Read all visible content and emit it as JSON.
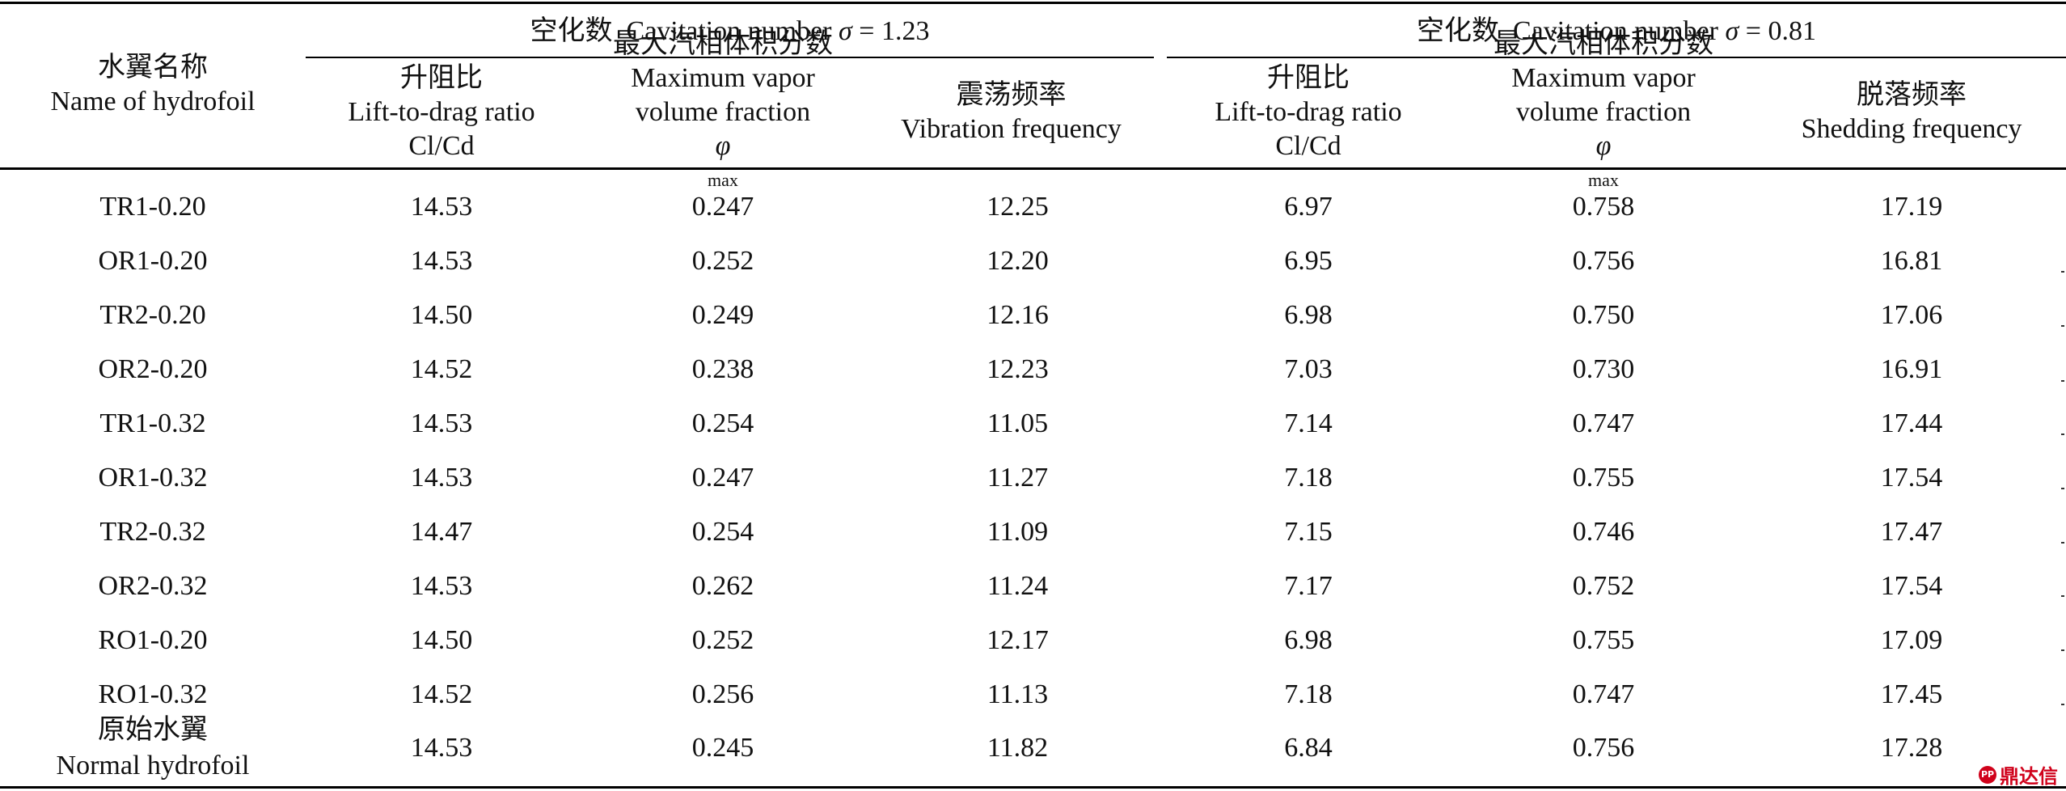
{
  "table": {
    "header": {
      "name_zh": "水翼名称",
      "name_en": "Name of hydrofoil",
      "groups": [
        {
          "title_zh": "空化数",
          "title_en": "Cavitation number",
          "sigma_symbol": "σ",
          "sigma_value": "= 1.23",
          "columns": [
            {
              "zh": "升阻比",
              "en": "Lift-to-drag ratio",
              "en2": "Cl/Cd"
            },
            {
              "zh": "最大汽相体积分数",
              "en": "Maximum vapor",
              "en2": "volume fraction",
              "symbol": "φ",
              "symbol_sub": "max"
            },
            {
              "zh": "震荡频率",
              "en": "Vibration frequency"
            }
          ]
        },
        {
          "title_zh": "空化数",
          "title_en": "Cavitation number",
          "sigma_symbol": "σ",
          "sigma_value": "= 0.81",
          "columns": [
            {
              "zh": "升阻比",
              "en": "Lift-to-drag ratio",
              "en2": "Cl/Cd"
            },
            {
              "zh": "最大汽相体积分数",
              "en": "Maximum vapor",
              "en2": "volume fraction",
              "symbol": "φ",
              "symbol_sub": "max"
            },
            {
              "zh": "脱落频率",
              "en": "Shedding frequency"
            }
          ]
        }
      ]
    },
    "rows": [
      {
        "name": "TR1-0.20",
        "v": [
          "14.53",
          "0.247",
          "12.25",
          "6.97",
          "0.758",
          "17.19"
        ]
      },
      {
        "name": "OR1-0.20",
        "v": [
          "14.53",
          "0.252",
          "12.20",
          "6.95",
          "0.756",
          "16.81"
        ]
      },
      {
        "name": "TR2-0.20",
        "v": [
          "14.50",
          "0.249",
          "12.16",
          "6.98",
          "0.750",
          "17.06"
        ]
      },
      {
        "name": "OR2-0.20",
        "v": [
          "14.52",
          "0.238",
          "12.23",
          "7.03",
          "0.730",
          "16.91"
        ]
      },
      {
        "name": "TR1-0.32",
        "v": [
          "14.53",
          "0.254",
          "11.05",
          "7.14",
          "0.747",
          "17.44"
        ]
      },
      {
        "name": "OR1-0.32",
        "v": [
          "14.53",
          "0.247",
          "11.27",
          "7.18",
          "0.755",
          "17.54"
        ]
      },
      {
        "name": "TR2-0.32",
        "v": [
          "14.47",
          "0.254",
          "11.09",
          "7.15",
          "0.746",
          "17.47"
        ]
      },
      {
        "name": "OR2-0.32",
        "v": [
          "14.53",
          "0.262",
          "11.24",
          "7.17",
          "0.752",
          "17.54"
        ]
      },
      {
        "name": "RO1-0.20",
        "v": [
          "14.50",
          "0.252",
          "12.17",
          "6.98",
          "0.755",
          "17.09"
        ]
      },
      {
        "name": "RO1-0.32",
        "v": [
          "14.52",
          "0.256",
          "11.13",
          "7.18",
          "0.747",
          "17.45"
        ]
      }
    ],
    "last_row": {
      "name_zh": "原始水翼",
      "name_en": "Normal hydrofoil",
      "v": [
        "14.53",
        "0.245",
        "11.82",
        "6.84",
        "0.756",
        "17.28"
      ]
    }
  },
  "watermark": {
    "seal": "PP",
    "text": "鼎达信"
  }
}
